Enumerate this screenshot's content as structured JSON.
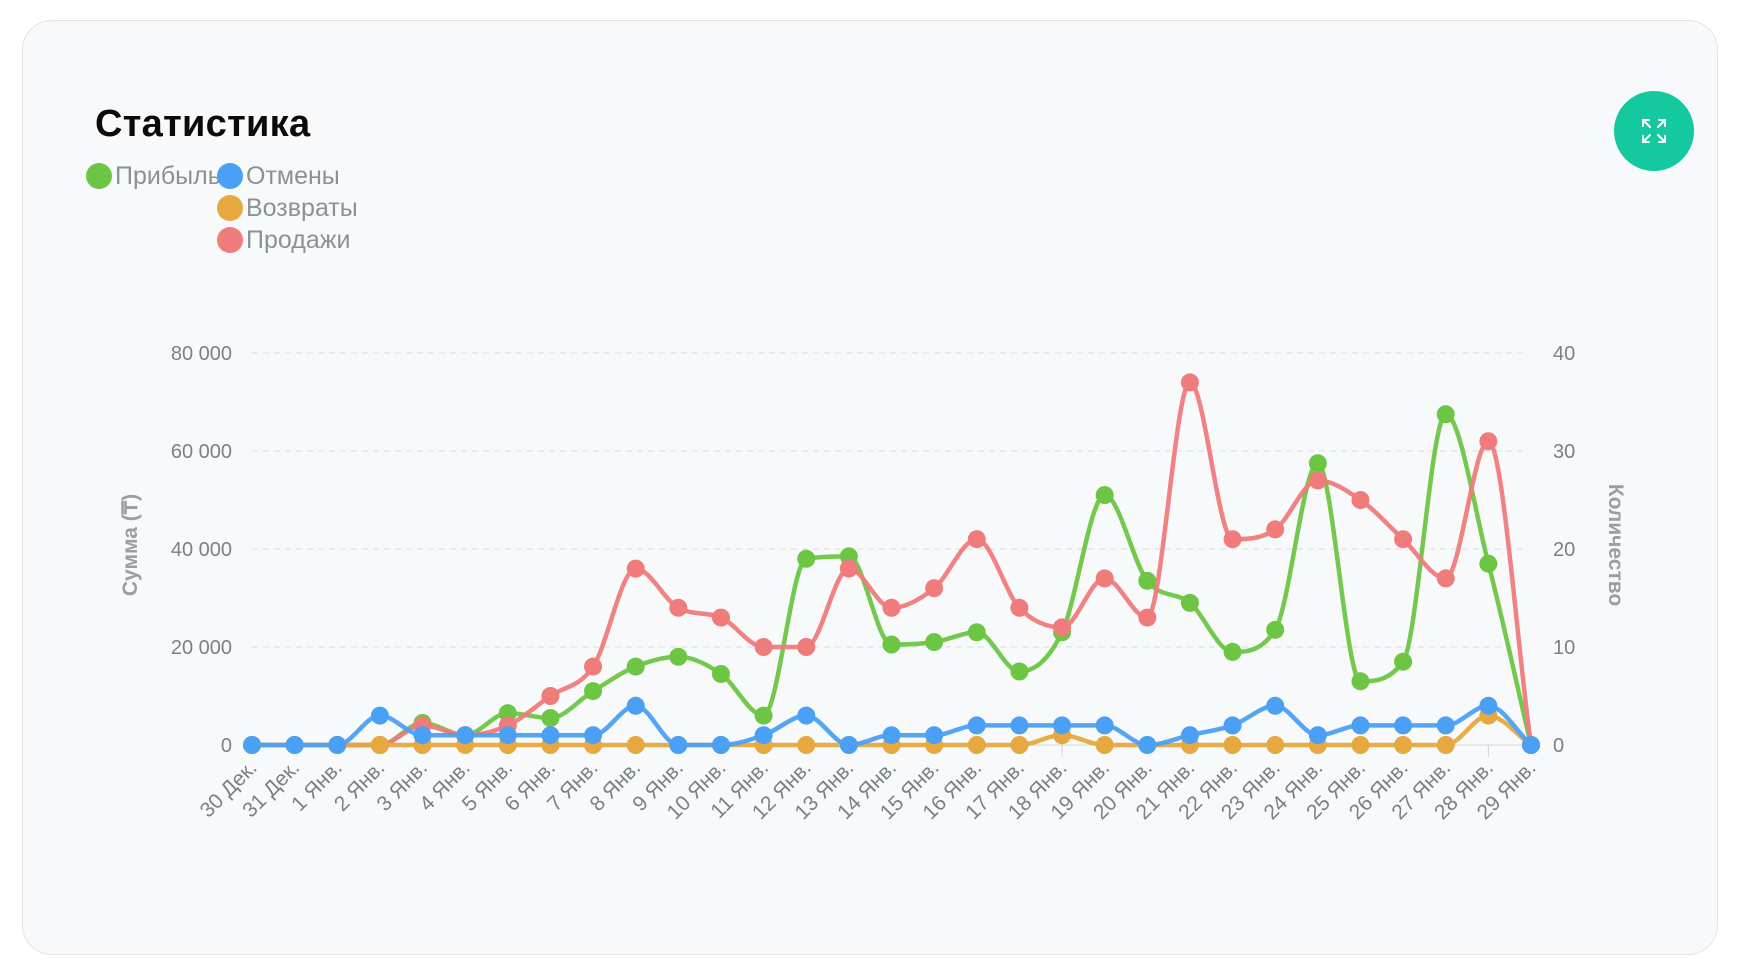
{
  "header": {
    "title": "Статистика"
  },
  "colors": {
    "profit": "#6cc644",
    "cancels": "#4aa0f5",
    "returns": "#e7a83f",
    "sales": "#f07b7b",
    "accent": "#14c9a0"
  },
  "expand_icon": "expand-arrows-icon",
  "chart_data": {
    "type": "line",
    "title": "",
    "ylabel": "Сумма (₸)",
    "y2label": "Количество",
    "ylim": [
      0,
      80000
    ],
    "y2lim": [
      0,
      40
    ],
    "yticks": [
      {
        "value": 0,
        "label": "0"
      },
      {
        "value": 20000,
        "label": "20 000"
      },
      {
        "value": 40000,
        "label": "40 000"
      },
      {
        "value": 60000,
        "label": "60 000"
      },
      {
        "value": 80000,
        "label": "80 000"
      }
    ],
    "y2ticks": [
      {
        "value": 0,
        "label": "0"
      },
      {
        "value": 10,
        "label": "10"
      },
      {
        "value": 20,
        "label": "20"
      },
      {
        "value": 30,
        "label": "30"
      },
      {
        "value": 40,
        "label": "40"
      }
    ],
    "grid": true,
    "legend_position": "top-left",
    "categories": [
      "30 Дек.",
      "31 Дек.",
      "1 Янв.",
      "2 Янв.",
      "3 Янв.",
      "4 Янв.",
      "5 Янв.",
      "6 Янв.",
      "7 Янв.",
      "8 Янв.",
      "9 Янв.",
      "10 Янв.",
      "11 Янв.",
      "12 Янв.",
      "13 Янв.",
      "14 Янв.",
      "15 Янв.",
      "16 Янв.",
      "17 Янв.",
      "18 Янв.",
      "19 Янв.",
      "20 Янв.",
      "21 Янв.",
      "22 Янв.",
      "23 Янв.",
      "24 Янв.",
      "25 Янв.",
      "26 Янв.",
      "27 Янв.",
      "28 Янв.",
      "29 Янв."
    ],
    "series": [
      {
        "name": "Прибыль",
        "key": "profit",
        "axis": "left",
        "values": [
          0,
          0,
          0,
          0,
          4500,
          2000,
          6500,
          5500,
          11000,
          16000,
          18000,
          14500,
          6000,
          38000,
          38500,
          20500,
          21000,
          23000,
          15000,
          23000,
          51000,
          33500,
          29000,
          19000,
          23500,
          57500,
          13000,
          17000,
          67500,
          37000,
          0
        ]
      },
      {
        "name": "Отмены",
        "key": "cancels",
        "axis": "right",
        "values": [
          0,
          0,
          0,
          3,
          1,
          1,
          1,
          1,
          1,
          4,
          0,
          0,
          1,
          3,
          0,
          1,
          1,
          2,
          2,
          2,
          2,
          0,
          1,
          2,
          4,
          1,
          2,
          2,
          2,
          4,
          0
        ]
      },
      {
        "name": "Возвраты",
        "key": "returns",
        "axis": "right",
        "values": [
          0,
          0,
          0,
          0,
          0,
          0,
          0,
          0,
          0,
          0,
          0,
          0,
          0,
          0,
          0,
          0,
          0,
          0,
          0,
          1,
          0,
          0,
          0,
          0,
          0,
          0,
          0,
          0,
          0,
          3,
          0
        ]
      },
      {
        "name": "Продажи",
        "key": "sales",
        "axis": "left",
        "values": [
          0,
          0,
          0,
          0,
          4000,
          2000,
          4000,
          10000,
          16000,
          36000,
          28000,
          26000,
          20000,
          20000,
          36000,
          28000,
          32000,
          42000,
          28000,
          24000,
          34000,
          26000,
          74000,
          42000,
          44000,
          54000,
          50000,
          42000,
          34000,
          62000,
          0
        ]
      }
    ]
  }
}
